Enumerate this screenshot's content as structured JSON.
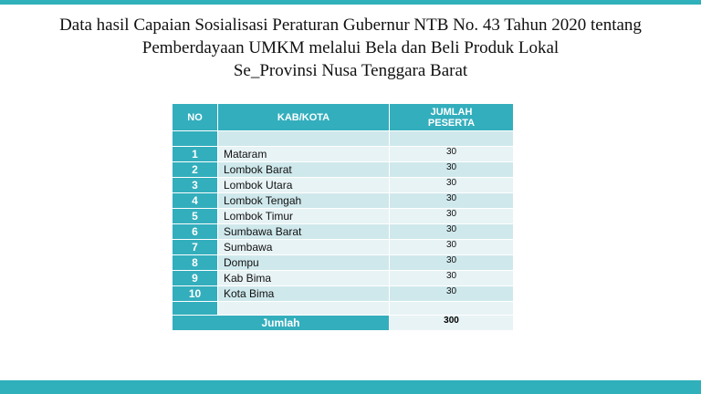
{
  "title": [
    "Data hasil Capaian Sosialisasi Peraturan Gubernur NTB No. 43 Tahun 2020 tentang",
    "Pemberdayaan UMKM melalui Bela dan Beli Produk Lokal",
    "Se_Provinsi Nusa Tenggara Barat"
  ],
  "table": {
    "headers": [
      "NO",
      "KAB/KOTA",
      "JUMLAH\nPESERTA"
    ],
    "rows": [
      [
        1,
        "Mataram",
        30
      ],
      [
        2,
        "Lombok Barat",
        30
      ],
      [
        3,
        "Lombok Utara",
        30
      ],
      [
        4,
        "Lombok Tengah",
        30
      ],
      [
        5,
        "Lombok Timur",
        30
      ],
      [
        6,
        "Sumbawa Barat",
        30
      ],
      [
        7,
        "Sumbawa",
        30
      ],
      [
        8,
        "Dompu",
        30
      ],
      [
        9,
        "Kab Bima",
        30
      ],
      [
        10,
        "Kota Bima",
        30
      ]
    ],
    "total_label": "Jumlah",
    "total_value": 300
  }
}
